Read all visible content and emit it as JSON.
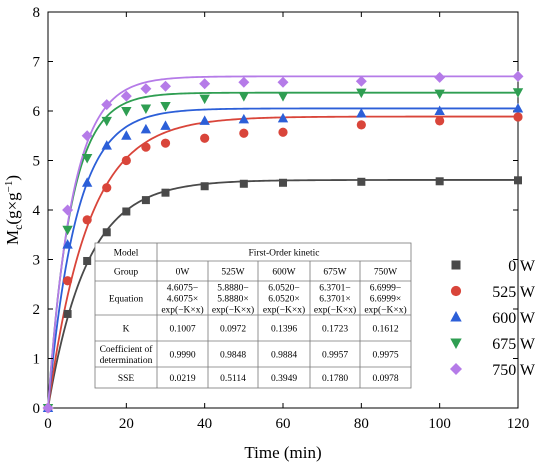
{
  "chart_data": {
    "type": "scatter",
    "xlabel": "Time (min)",
    "ylabel_main": "M",
    "ylabel_sub": "c",
    "ylabel_unit": "(g×g",
    "ylabel_sup": "−1",
    "ylabel_close": ")",
    "xlim": [
      0,
      120
    ],
    "ylim": [
      0,
      8
    ],
    "x_ticks": [
      0,
      20,
      40,
      60,
      80,
      100,
      120
    ],
    "y_ticks": [
      0,
      1,
      2,
      3,
      4,
      5,
      6,
      7,
      8
    ],
    "grid": false,
    "legend_position": "right",
    "series": [
      {
        "name": "0 W",
        "marker": "square",
        "color": "#4a4a4a",
        "fit": {
          "a": 4.6075,
          "k": 0.1007
        },
        "x": [
          0,
          5,
          10,
          15,
          20,
          25,
          30,
          40,
          50,
          60,
          80,
          100,
          120
        ],
        "y": [
          0.0,
          1.9,
          2.97,
          3.55,
          3.97,
          4.2,
          4.35,
          4.48,
          4.53,
          4.55,
          4.57,
          4.58,
          4.6
        ]
      },
      {
        "name": "525 W",
        "marker": "circle",
        "color": "#d9453a",
        "fit": {
          "a": 5.888,
          "k": 0.0972
        },
        "x": [
          0,
          5,
          10,
          15,
          20,
          25,
          30,
          40,
          50,
          60,
          80,
          100,
          120
        ],
        "y": [
          0.0,
          2.57,
          3.8,
          4.45,
          5.0,
          5.27,
          5.35,
          5.45,
          5.55,
          5.57,
          5.72,
          5.8,
          5.88
        ]
      },
      {
        "name": "600 W",
        "marker": "triangle-up",
        "color": "#2c5fd8",
        "fit": {
          "a": 6.052,
          "k": 0.1396
        },
        "x": [
          0,
          5,
          10,
          15,
          20,
          25,
          30,
          40,
          50,
          60,
          80,
          100,
          120
        ],
        "y": [
          0.0,
          3.3,
          4.55,
          5.3,
          5.5,
          5.63,
          5.7,
          5.8,
          5.83,
          5.85,
          5.95,
          6.0,
          6.05
        ]
      },
      {
        "name": "675 W",
        "marker": "triangle-down",
        "color": "#2f9e52",
        "fit": {
          "a": 6.3701,
          "k": 0.1723
        },
        "x": [
          0,
          5,
          10,
          15,
          20,
          25,
          30,
          40,
          50,
          60,
          80,
          100,
          120
        ],
        "y": [
          0.0,
          3.6,
          5.05,
          5.8,
          6.0,
          6.05,
          6.1,
          6.25,
          6.3,
          6.3,
          6.37,
          6.35,
          6.38
        ]
      },
      {
        "name": "750 W",
        "marker": "diamond",
        "color": "#b57be8",
        "fit": {
          "a": 6.6999,
          "k": 0.1612
        },
        "x": [
          0,
          5,
          10,
          15,
          20,
          25,
          30,
          40,
          50,
          60,
          80,
          100,
          120
        ],
        "y": [
          0.0,
          4.0,
          5.5,
          6.13,
          6.3,
          6.45,
          6.5,
          6.55,
          6.58,
          6.58,
          6.6,
          6.68,
          6.7
        ]
      }
    ],
    "table": {
      "title_cell": "Model",
      "title": "First-Order kinetic",
      "header_label": "Group",
      "columns": [
        "0W",
        "525W",
        "600W",
        "675W",
        "750W"
      ],
      "rows": [
        {
          "label": [
            "Equation"
          ],
          "cells": [
            [
              "4.6075−",
              "4.6075×",
              "exp(−K×x)"
            ],
            [
              "5.8880−",
              "5.8880×",
              "exp(−K×x)"
            ],
            [
              "6.0520−",
              "6.0520×",
              "exp(−K×x)"
            ],
            [
              "6.3701−",
              "6.3701×",
              "exp(−K×x)"
            ],
            [
              "6.6999−",
              "6.6999×",
              "exp(−K×x)"
            ]
          ]
        },
        {
          "label": [
            "K"
          ],
          "cells": [
            [
              "0.1007"
            ],
            [
              "0.0972"
            ],
            [
              "0.1396"
            ],
            [
              "0.1723"
            ],
            [
              "0.1612"
            ]
          ]
        },
        {
          "label": [
            "Coefficient of",
            "determination"
          ],
          "cells": [
            [
              "0.9990"
            ],
            [
              "0.9848"
            ],
            [
              "0.9884"
            ],
            [
              "0.9957"
            ],
            [
              "0.9975"
            ]
          ]
        },
        {
          "label": [
            "SSE"
          ],
          "cells": [
            [
              "0.0219"
            ],
            [
              "0.5114"
            ],
            [
              "0.3949"
            ],
            [
              "0.1780"
            ],
            [
              "0.0978"
            ]
          ]
        }
      ]
    }
  }
}
